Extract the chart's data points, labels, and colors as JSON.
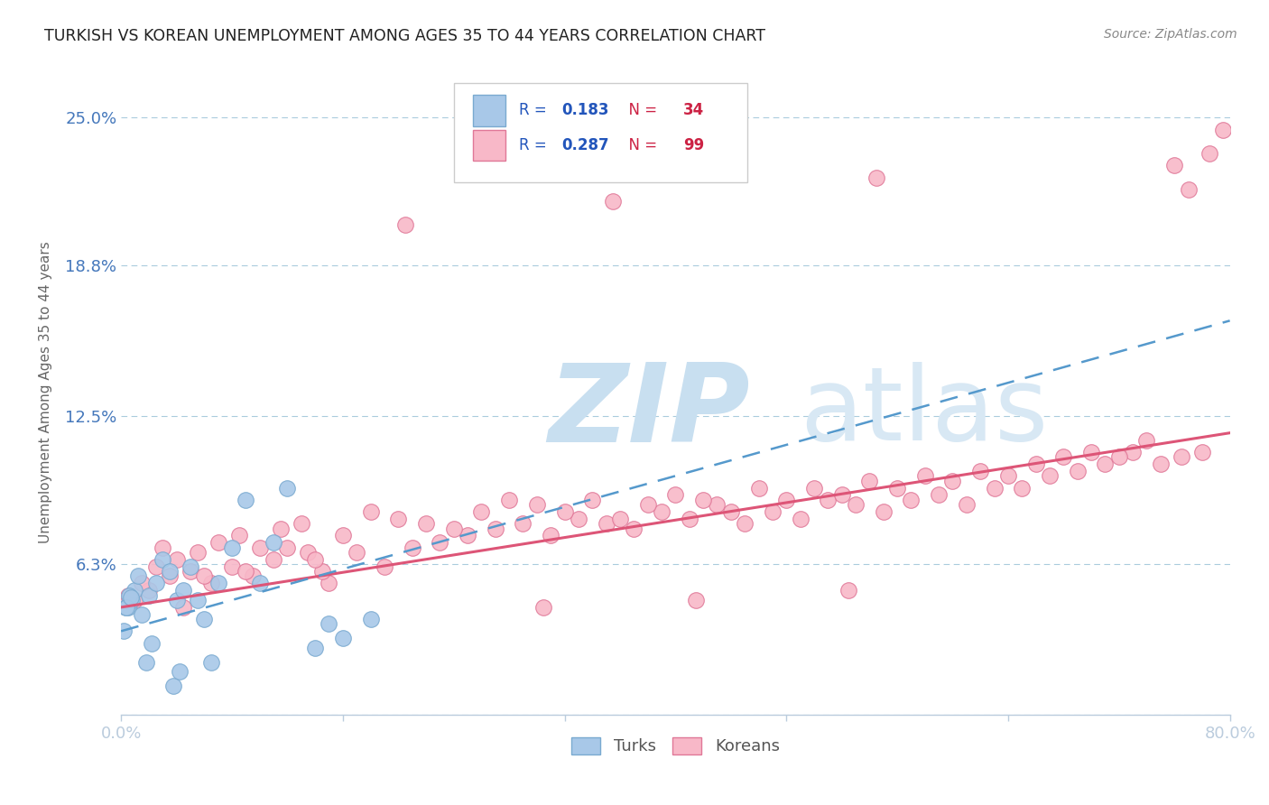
{
  "title": "TURKISH VS KOREAN UNEMPLOYMENT AMONG AGES 35 TO 44 YEARS CORRELATION CHART",
  "source": "Source: ZipAtlas.com",
  "ylabel_label": "Unemployment Among Ages 35 to 44 years",
  "xlim": [
    0.0,
    80.0
  ],
  "ylim": [
    0.0,
    27.0
  ],
  "x_ticks": [
    0.0,
    16.0,
    32.0,
    48.0,
    64.0,
    80.0
  ],
  "x_tick_labels": [
    "0.0%",
    "",
    "",
    "",
    "",
    "80.0%"
  ],
  "y_ticks": [
    0.0,
    6.3,
    12.5,
    18.8,
    25.0
  ],
  "y_tick_labels": [
    "",
    "6.3%",
    "12.5%",
    "18.8%",
    "25.0%"
  ],
  "turks_R": 0.183,
  "turks_N": 34,
  "koreans_R": 0.287,
  "koreans_N": 99,
  "turk_color": "#A8C8E8",
  "turk_edge_color": "#7AAAD0",
  "korean_color": "#F8B8C8",
  "korean_edge_color": "#E07898",
  "turk_line_color": "#5599CC",
  "korean_line_color": "#DD5577",
  "title_color": "#222222",
  "tick_label_color": "#4477BB",
  "legend_r_color": "#2255BB",
  "legend_n_color": "#CC2244",
  "background_color": "#FFFFFF",
  "grid_color": "#AACCDD",
  "watermark_zip_color": "#C8DFF0",
  "watermark_atlas_color": "#D8E8F4",
  "source_color": "#888888",
  "turks_x": [
    0.5,
    0.8,
    1.0,
    1.2,
    1.5,
    2.0,
    2.5,
    3.0,
    3.5,
    4.0,
    4.5,
    5.0,
    5.5,
    6.0,
    7.0,
    8.0,
    9.0,
    10.0,
    11.0,
    12.0,
    14.0,
    15.0,
    16.0,
    18.0,
    0.3,
    0.6,
    1.8,
    2.2,
    3.8,
    4.2,
    6.5,
    0.2,
    0.4,
    0.7
  ],
  "turks_y": [
    4.5,
    4.8,
    5.2,
    5.8,
    4.2,
    5.0,
    5.5,
    6.5,
    6.0,
    4.8,
    5.2,
    6.2,
    4.8,
    4.0,
    5.5,
    7.0,
    9.0,
    5.5,
    7.2,
    9.5,
    2.8,
    3.8,
    3.2,
    4.0,
    4.5,
    5.0,
    2.2,
    3.0,
    1.2,
    1.8,
    2.2,
    3.5,
    4.5,
    4.9
  ],
  "koreans_x": [
    2.0,
    3.5,
    5.0,
    6.5,
    8.0,
    9.5,
    11.0,
    12.0,
    13.5,
    15.0,
    17.0,
    19.0,
    21.0,
    23.0,
    25.0,
    27.0,
    29.0,
    31.0,
    33.0,
    35.0,
    37.0,
    39.0,
    41.0,
    43.0,
    45.0,
    47.0,
    49.0,
    51.0,
    53.0,
    55.0,
    57.0,
    59.0,
    61.0,
    63.0,
    65.0,
    67.0,
    69.0,
    71.0,
    73.0,
    75.0,
    76.5,
    78.0,
    1.0,
    1.5,
    2.5,
    3.0,
    4.0,
    5.5,
    7.0,
    8.5,
    10.0,
    11.5,
    13.0,
    14.5,
    16.0,
    18.0,
    20.0,
    22.0,
    24.0,
    26.0,
    28.0,
    30.0,
    32.0,
    34.0,
    36.0,
    38.0,
    40.0,
    42.0,
    44.0,
    46.0,
    48.0,
    50.0,
    52.0,
    54.0,
    56.0,
    58.0,
    60.0,
    62.0,
    64.0,
    66.0,
    68.0,
    70.0,
    72.0,
    74.0,
    35.5,
    54.5,
    78.5,
    79.5,
    77.0,
    76.0,
    0.5,
    4.5,
    6.0,
    9.0,
    14.0,
    20.5,
    30.5,
    41.5,
    52.5
  ],
  "koreans_y": [
    5.2,
    5.8,
    6.0,
    5.5,
    6.2,
    5.8,
    6.5,
    7.0,
    6.8,
    5.5,
    6.8,
    6.2,
    7.0,
    7.2,
    7.5,
    7.8,
    8.0,
    7.5,
    8.2,
    8.0,
    7.8,
    8.5,
    8.2,
    8.8,
    8.0,
    8.5,
    8.2,
    9.0,
    8.8,
    8.5,
    9.0,
    9.2,
    8.8,
    9.5,
    9.5,
    10.0,
    10.2,
    10.5,
    11.0,
    10.5,
    10.8,
    11.0,
    4.8,
    5.5,
    6.2,
    7.0,
    6.5,
    6.8,
    7.2,
    7.5,
    7.0,
    7.8,
    8.0,
    6.0,
    7.5,
    8.5,
    8.2,
    8.0,
    7.8,
    8.5,
    9.0,
    8.8,
    8.5,
    9.0,
    8.2,
    8.8,
    9.2,
    9.0,
    8.5,
    9.5,
    9.0,
    9.5,
    9.2,
    9.8,
    9.5,
    10.0,
    9.8,
    10.2,
    10.0,
    10.5,
    10.8,
    11.0,
    10.8,
    11.5,
    21.5,
    22.5,
    23.5,
    24.5,
    22.0,
    23.0,
    5.0,
    4.5,
    5.8,
    6.0,
    6.5,
    20.5,
    4.5,
    4.8,
    5.2
  ],
  "korean_trend_x": [
    0.0,
    80.0
  ],
  "korean_trend_y": [
    4.5,
    11.8
  ],
  "turk_trend_x": [
    0.0,
    80.0
  ],
  "turk_trend_y": [
    3.5,
    16.5
  ]
}
